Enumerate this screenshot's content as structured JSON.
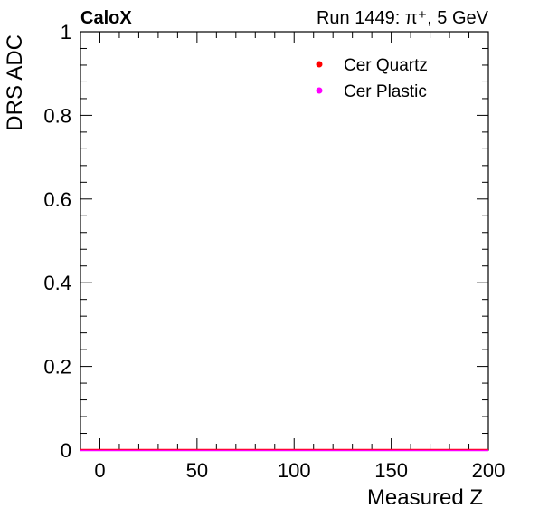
{
  "header": {
    "experiment": "CaloX",
    "run_info": "Run 1449:   π⁺, 5 GeV"
  },
  "chart_data": {
    "type": "scatter",
    "xlabel": "Measured Z",
    "ylabel": "DRS ADC",
    "xlim": [
      -10,
      200
    ],
    "ylim": [
      0,
      1
    ],
    "x_ticks": [
      0,
      50,
      100,
      150,
      200
    ],
    "x_tick_labels": [
      "0",
      "50",
      "100",
      "150",
      "200"
    ],
    "y_ticks": [
      0,
      0.2,
      0.4,
      0.6,
      0.8,
      1
    ],
    "y_tick_labels": [
      "0",
      "0.2",
      "0.4",
      "0.6",
      "0.8",
      "1"
    ],
    "grid": false,
    "legend_position": "top-right",
    "series": [
      {
        "name": "Cer Quartz",
        "color": "#ff0000",
        "x": [
          -10,
          200
        ],
        "y": [
          0,
          0
        ],
        "style": "flat line at zero"
      },
      {
        "name": "Cer Plastic",
        "color": "#ff00ff",
        "x": [
          -10,
          200
        ],
        "y": [
          0,
          0
        ],
        "style": "flat line at zero"
      }
    ]
  }
}
